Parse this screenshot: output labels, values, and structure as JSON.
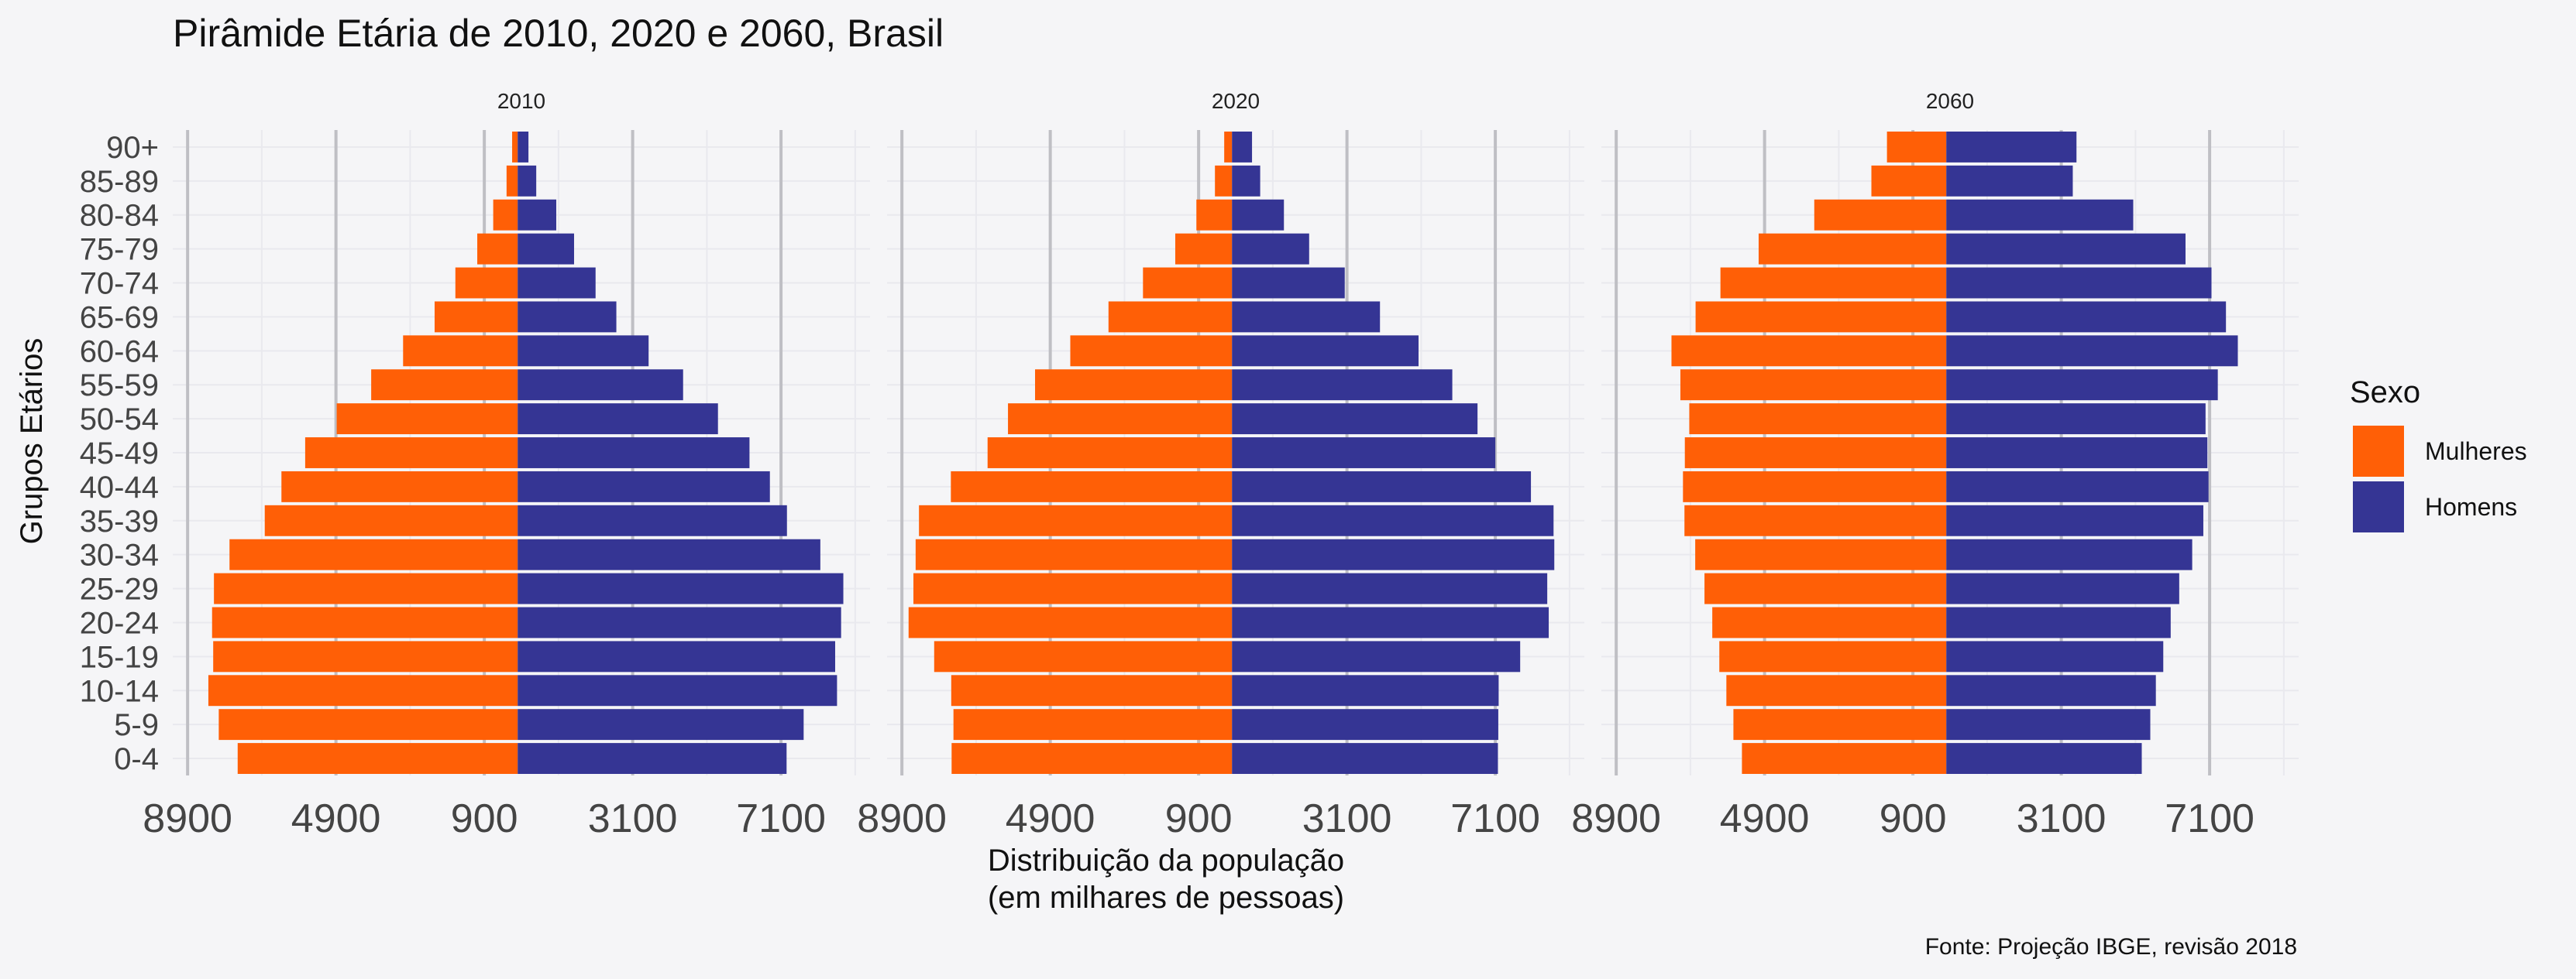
{
  "title": "Pirâmide Etária de 2010, 2020 e 2060, Brasil",
  "caption": "Fonte: Projeção IBGE, revisão 2018",
  "colors": {
    "female": "#ff5f06",
    "male": "#353594",
    "grid_major": "#bfbfc4",
    "grid_minor": "#e9e9ee",
    "background": "#f5f5f7"
  },
  "legend": {
    "title": "Sexo",
    "items": [
      "Mulheres",
      "Homens"
    ],
    "position": "right"
  },
  "chart_data": {
    "type": "bar",
    "orientation": "horizontal",
    "title": "Pirâmide Etária de 2010, 2020 e 2060, Brasil",
    "xlabel": "Distribuição da população\n(em milhares de pessoas)",
    "ylabel": "Grupos Etários",
    "x_tick_labels": [
      "8900",
      "4900",
      "900",
      "3100",
      "7100"
    ],
    "x_tick_values": [
      -8900,
      -4900,
      -900,
      3100,
      7100
    ],
    "xlim": [
      -9300,
      9500
    ],
    "grid": true,
    "categories": [
      "0-4",
      "5-9",
      "10-14",
      "15-19",
      "20-24",
      "25-29",
      "30-34",
      "35-39",
      "40-44",
      "45-49",
      "50-54",
      "55-59",
      "60-64",
      "65-69",
      "70-74",
      "75-79",
      "80-84",
      "85-89",
      "90+"
    ],
    "panels": [
      {
        "label": "2010",
        "series": [
          {
            "name": "Mulheres",
            "values": [
              -7550,
              -8060,
              -8340,
              -8210,
              -8240,
              -8190,
              -7770,
              -6820,
              -6370,
              -5730,
              -4880,
              -3950,
              -3090,
              -2240,
              -1680,
              -1090,
              -660,
              -300,
              -150
            ]
          },
          {
            "name": "Homens",
            "values": [
              7250,
              7710,
              8610,
              8560,
              8720,
              8780,
              8160,
              7260,
              6800,
              6250,
              5400,
              4460,
              3530,
              2660,
              2100,
              1520,
              1040,
              500,
              290
            ]
          }
        ]
      },
      {
        "label": "2020",
        "series": [
          {
            "name": "Mulheres",
            "values": [
              -7560,
              -7510,
              -7570,
              -8030,
              -8720,
              -8590,
              -8530,
              -8440,
              -7580,
              -6590,
              -6040,
              -5310,
              -4360,
              -3330,
              -2400,
              -1530,
              -960,
              -460,
              -210
            ]
          },
          {
            "name": "Homens",
            "values": [
              7170,
              7180,
              7190,
              7770,
              8540,
              8500,
              8690,
              8670,
              8060,
              7100,
              6620,
              5940,
              5030,
              3990,
              3040,
              2080,
              1400,
              760,
              540
            ]
          }
        ]
      },
      {
        "label": "2060",
        "series": [
          {
            "name": "Mulheres",
            "values": [
              -5510,
              -5740,
              -5930,
              -6120,
              -6310,
              -6520,
              -6770,
              -7060,
              -7100,
              -7050,
              -6930,
              -7170,
              -7410,
              -6760,
              -6090,
              -5060,
              -3560,
              -2020,
              -1600
            ]
          },
          {
            "name": "Homens",
            "values": [
              5270,
              5500,
              5650,
              5850,
              6050,
              6280,
              6630,
              6930,
              7070,
              7040,
              6990,
              7320,
              7860,
              7540,
              7150,
              6450,
              5040,
              3410,
              3510
            ]
          }
        ]
      }
    ]
  }
}
